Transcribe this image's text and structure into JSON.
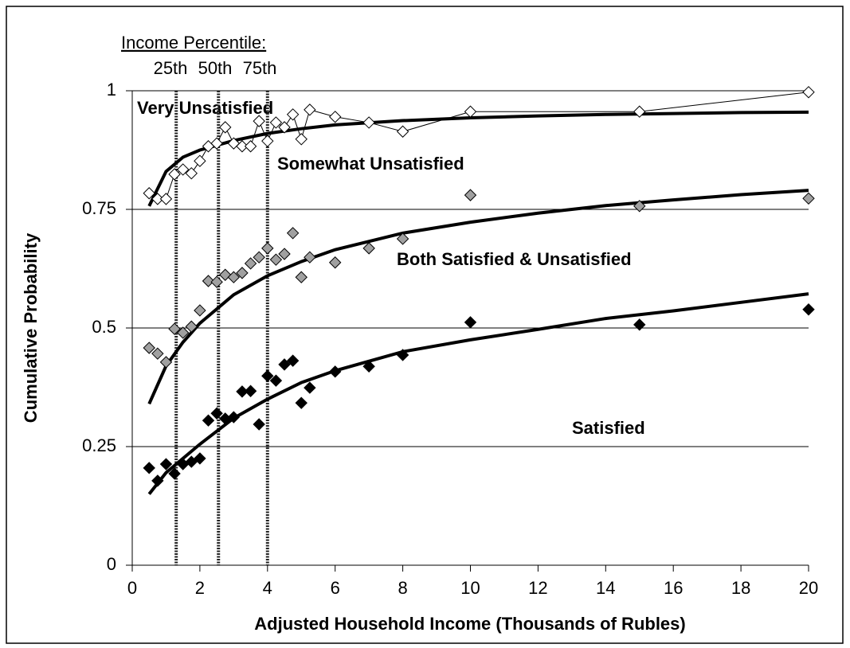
{
  "chart_data": {
    "type": "scatter",
    "title": "Income Percentile:",
    "percentiles": [
      {
        "label": "25th",
        "x": 1.3
      },
      {
        "label": "50th",
        "x": 2.55
      },
      {
        "label": "75th",
        "x": 4.0
      }
    ],
    "xlabel": "Adjusted Household Income (Thousands of Rubles)",
    "ylabel": "Cumulative Probability",
    "xlim": [
      0,
      20
    ],
    "xticks": [
      0,
      2,
      4,
      6,
      8,
      10,
      12,
      14,
      16,
      18,
      20
    ],
    "ylim": [
      0,
      1
    ],
    "yticks": [
      0,
      0.25,
      0.5,
      0.75,
      1
    ],
    "grid": true,
    "annotations": [
      "Very Unsatisfied",
      "Somewhat Unsatisfied",
      "Both Satisfied & Unsatisfied",
      "Satisfied"
    ],
    "x": [
      0.5,
      0.75,
      1.0,
      1.25,
      1.5,
      1.75,
      2.0,
      2.25,
      2.5,
      2.75,
      3.0,
      3.25,
      3.5,
      3.75,
      4.0,
      4.25,
      4.5,
      4.75,
      5.0,
      5.25,
      6,
      7,
      8,
      10,
      15,
      20
    ],
    "series": [
      {
        "color": "#ffffff",
        "connected": true,
        "values": [
          0.784,
          0.772,
          0.772,
          0.824,
          0.834,
          0.826,
          0.852,
          0.883,
          0.889,
          0.923,
          0.889,
          0.883,
          0.883,
          0.936,
          0.894,
          0.933,
          0.923,
          0.95,
          0.898,
          0.96,
          0.945,
          0.933,
          0.914,
          0.956,
          0.956,
          0.997
        ]
      },
      {
        "color": "#a0a0a0",
        "connected": false,
        "values": [
          0.458,
          0.446,
          0.428,
          0.498,
          0.49,
          0.503,
          0.537,
          0.599,
          0.597,
          0.612,
          0.607,
          0.616,
          0.636,
          0.649,
          0.668,
          0.644,
          0.656,
          0.7,
          0.607,
          0.649,
          0.638,
          0.668,
          0.688,
          0.78,
          0.757,
          0.773
        ]
      },
      {
        "color": "#000000",
        "connected": false,
        "values": [
          0.205,
          0.178,
          0.213,
          0.193,
          0.213,
          0.218,
          0.225,
          0.305,
          0.32,
          0.309,
          0.312,
          0.366,
          0.367,
          0.297,
          0.399,
          0.389,
          0.423,
          0.431,
          0.342,
          0.374,
          0.408,
          0.419,
          0.443,
          0.512,
          0.507,
          0.539
        ]
      }
    ],
    "curves": {
      "x": [
        0.5,
        1,
        1.5,
        2,
        3,
        4,
        5,
        6,
        8,
        10,
        12,
        14,
        16,
        18,
        20
      ],
      "series": [
        {
          "values": [
            0.757,
            0.83,
            0.86,
            0.875,
            0.895,
            0.91,
            0.92,
            0.928,
            0.937,
            0.943,
            0.947,
            0.95,
            0.952,
            0.954,
            0.955
          ]
        },
        {
          "values": [
            0.34,
            0.42,
            0.47,
            0.51,
            0.57,
            0.61,
            0.64,
            0.665,
            0.7,
            0.723,
            0.742,
            0.758,
            0.77,
            0.781,
            0.79
          ]
        },
        {
          "values": [
            0.15,
            0.195,
            0.225,
            0.255,
            0.31,
            0.35,
            0.385,
            0.41,
            0.45,
            0.475,
            0.497,
            0.52,
            0.536,
            0.554,
            0.572
          ]
        }
      ]
    }
  }
}
